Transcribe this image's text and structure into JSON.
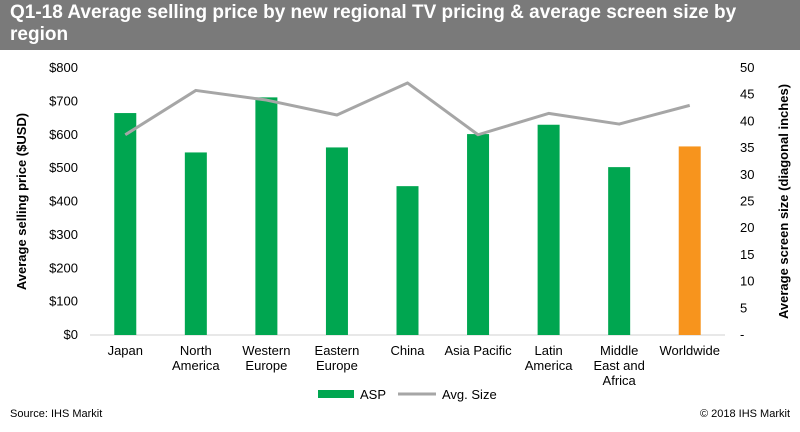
{
  "chart_data": {
    "type": "bar",
    "title": "Q1-18 Average selling price by new regional TV pricing & average screen size by region",
    "categories": [
      [
        "Japan"
      ],
      [
        "North",
        "America"
      ],
      [
        "Western",
        "Europe"
      ],
      [
        "Eastern",
        "Europe"
      ],
      [
        "China"
      ],
      [
        "Asia Pacific"
      ],
      [
        "Latin",
        "America"
      ],
      [
        "Middle",
        "East and",
        "Africa"
      ],
      [
        "Worldwide"
      ]
    ],
    "series": [
      {
        "name": "ASP",
        "type": "bar",
        "axis": "left",
        "values": [
          665,
          547,
          712,
          562,
          446,
          602,
          630,
          503,
          565
        ],
        "color": "#00a650",
        "highlight_color": "#f7941d",
        "highlight_index": 8
      },
      {
        "name": "Avg. Size",
        "type": "line",
        "axis": "right",
        "values": [
          37.5,
          45.8,
          44.0,
          41.2,
          47.2,
          37.5,
          41.5,
          39.5,
          43.0
        ],
        "color": "#a6a6a6"
      }
    ],
    "ylabel": "Average selling price ($USD)",
    "y2label": "Average screen size (diagonal inches)",
    "ylim": [
      0,
      800
    ],
    "y2lim": [
      0,
      50
    ],
    "yticks": [
      "$0",
      "$100",
      "$200",
      "$300",
      "$400",
      "$500",
      "$600",
      "$700",
      "$800"
    ],
    "y2ticks": [
      "-",
      "5",
      "10",
      "15",
      "20",
      "25",
      "30",
      "35",
      "40",
      "45",
      "50"
    ],
    "legend_position": "bottom",
    "grid": false
  },
  "footer": {
    "source": "Source: IHS Markit",
    "copyright": "© 2018 IHS Markit"
  }
}
